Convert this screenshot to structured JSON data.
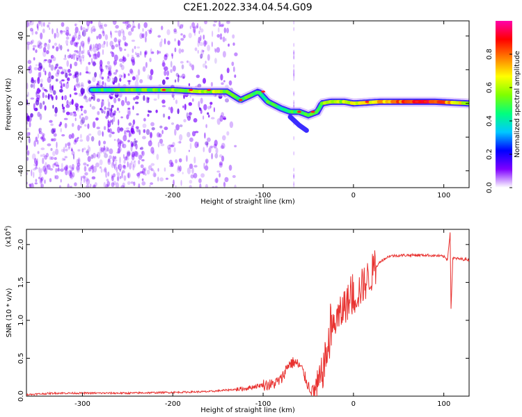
{
  "title": "C2E1.2022.334.04.54.G09",
  "colors": {
    "signal": "#e8312f",
    "speckle": "#7a00ff",
    "axis": "#000000"
  },
  "chart_data": [
    {
      "type": "heatmap",
      "xlabel": "Height of straight line (km)",
      "ylabel": "Frequency (Hz)",
      "xlim": [
        -362,
        128
      ],
      "ylim": [
        -50,
        49
      ],
      "xticks": [
        -300,
        -200,
        -100,
        0,
        100
      ],
      "xtick_labels": [
        "-300",
        "-200",
        "-100",
        "0",
        "100"
      ],
      "yticks": [
        -40,
        -20,
        0,
        20,
        40
      ],
      "ytick_labels": [
        "-40",
        "-20",
        "0",
        "20",
        "40"
      ],
      "colorbar": {
        "label": "Normalized spectral amplitude",
        "range": [
          0,
          1
        ],
        "ticks": [
          0.0,
          0.2,
          0.4,
          0.6,
          0.8
        ],
        "tick_labels": [
          "0.0",
          "0.2",
          "0.4",
          "0.6",
          "0.8"
        ],
        "colormap": [
          "#ffffff",
          "#7f00ff",
          "#0000ff",
          "#00c8ff",
          "#00ff7f",
          "#7fff00",
          "#ffff00",
          "#ff7f00",
          "#ff0000",
          "#ff00aa"
        ]
      },
      "ridge": [
        {
          "x": -290,
          "y": 8
        },
        {
          "x": -250,
          "y": 8
        },
        {
          "x": -225,
          "y": 8
        },
        {
          "x": -200,
          "y": 8
        },
        {
          "x": -170,
          "y": 7
        },
        {
          "x": -140,
          "y": 7
        },
        {
          "x": -125,
          "y": 2
        },
        {
          "x": -105,
          "y": 7
        },
        {
          "x": -95,
          "y": 1
        },
        {
          "x": -80,
          "y": -3
        },
        {
          "x": -70,
          "y": -5
        },
        {
          "x": -60,
          "y": -5
        },
        {
          "x": -50,
          "y": -7
        },
        {
          "x": -40,
          "y": -5
        },
        {
          "x": -35,
          "y": 0
        },
        {
          "x": -25,
          "y": 1
        },
        {
          "x": -10,
          "y": 1
        },
        {
          "x": 0,
          "y": 0
        },
        {
          "x": 30,
          "y": 1
        },
        {
          "x": 60,
          "y": 1
        },
        {
          "x": 90,
          "y": 1
        },
        {
          "x": 128,
          "y": 0
        }
      ],
      "spur": [
        {
          "x": -70,
          "y": -8
        },
        {
          "x": -60,
          "y": -13
        },
        {
          "x": -52,
          "y": -16
        }
      ],
      "ridge_amplitude": [
        {
          "x": -290,
          "a": 0.45
        },
        {
          "x": -200,
          "a": 0.55
        },
        {
          "x": -150,
          "a": 0.6
        },
        {
          "x": -120,
          "a": 0.5
        },
        {
          "x": -90,
          "a": 0.45
        },
        {
          "x": -60,
          "a": 0.45
        },
        {
          "x": -30,
          "a": 0.55
        },
        {
          "x": 0,
          "a": 0.65
        },
        {
          "x": 40,
          "a": 0.75
        },
        {
          "x": 80,
          "a": 0.9
        },
        {
          "x": 128,
          "a": 0.6
        }
      ],
      "grid": false,
      "legend": "colorbar-right"
    },
    {
      "type": "line",
      "xlabel": "Height of straight line (km)",
      "ylabel": "SNR (10 * v/v)",
      "y_exponent_label": "(x10",
      "y_exponent_power": "4",
      "y_exponent_close": ")",
      "xlim": [
        -362,
        128
      ],
      "ylim": [
        0,
        2.2
      ],
      "xticks": [
        -300,
        -200,
        -100,
        0,
        100
      ],
      "xtick_labels": [
        "-300",
        "-200",
        "-100",
        "0",
        "100"
      ],
      "yticks": [
        0.0,
        0.5,
        1.0,
        1.5,
        2.0
      ],
      "ytick_labels": [
        "0.0",
        "0.5",
        "1.0",
        "1.5",
        "2.0"
      ],
      "series": [
        {
          "color": "#e8312f",
          "points": [
            {
              "x": -362,
              "y": 0.02
            },
            {
              "x": -330,
              "y": 0.04
            },
            {
              "x": -300,
              "y": 0.04
            },
            {
              "x": -250,
              "y": 0.04
            },
            {
              "x": -200,
              "y": 0.05
            },
            {
              "x": -160,
              "y": 0.06
            },
            {
              "x": -140,
              "y": 0.08
            },
            {
              "x": -120,
              "y": 0.1
            },
            {
              "x": -100,
              "y": 0.15
            },
            {
              "x": -90,
              "y": 0.15
            },
            {
              "x": -80,
              "y": 0.22
            },
            {
              "x": -72,
              "y": 0.42
            },
            {
              "x": -65,
              "y": 0.45
            },
            {
              "x": -58,
              "y": 0.38
            },
            {
              "x": -50,
              "y": 0.14
            },
            {
              "x": -45,
              "y": 0.05
            },
            {
              "x": -40,
              "y": 0.1
            },
            {
              "x": -35,
              "y": 0.28
            },
            {
              "x": -30,
              "y": 0.55
            },
            {
              "x": -25,
              "y": 0.8
            },
            {
              "x": -20,
              "y": 1.0
            },
            {
              "x": -15,
              "y": 1.05
            },
            {
              "x": -10,
              "y": 1.2
            },
            {
              "x": 0,
              "y": 1.3
            },
            {
              "x": 10,
              "y": 1.45
            },
            {
              "x": 20,
              "y": 1.62
            },
            {
              "x": 30,
              "y": 1.78
            },
            {
              "x": 40,
              "y": 1.85
            },
            {
              "x": 60,
              "y": 1.86
            },
            {
              "x": 80,
              "y": 1.86
            },
            {
              "x": 95,
              "y": 1.85
            },
            {
              "x": 100,
              "y": 1.84
            },
            {
              "x": 104,
              "y": 1.8
            },
            {
              "x": 107,
              "y": 2.15
            },
            {
              "x": 108,
              "y": 1.15
            },
            {
              "x": 110,
              "y": 1.82
            },
            {
              "x": 118,
              "y": 1.81
            },
            {
              "x": 128,
              "y": 1.8
            }
          ]
        }
      ],
      "grid": false,
      "legend": "none"
    }
  ]
}
